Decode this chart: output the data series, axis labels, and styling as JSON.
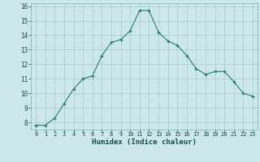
{
  "x": [
    0,
    1,
    2,
    3,
    4,
    5,
    6,
    7,
    8,
    9,
    10,
    11,
    12,
    13,
    14,
    15,
    16,
    17,
    18,
    19,
    20,
    21,
    22,
    23
  ],
  "y": [
    7.8,
    7.8,
    8.3,
    9.3,
    10.3,
    11.0,
    11.2,
    12.6,
    13.5,
    13.7,
    14.3,
    15.7,
    15.7,
    14.2,
    13.6,
    13.3,
    12.6,
    11.7,
    11.3,
    11.5,
    11.5,
    10.8,
    10.0,
    9.8
  ],
  "xlabel": "Humidex (Indice chaleur)",
  "ylim": [
    7.5,
    16.2
  ],
  "xlim": [
    -0.5,
    23.5
  ],
  "yticks": [
    8,
    9,
    10,
    11,
    12,
    13,
    14,
    15,
    16
  ],
  "xticks": [
    0,
    1,
    2,
    3,
    4,
    5,
    6,
    7,
    8,
    9,
    10,
    11,
    12,
    13,
    14,
    15,
    16,
    17,
    18,
    19,
    20,
    21,
    22,
    23
  ],
  "line_color": "#2d7a6c",
  "marker": "+",
  "bg_color": "#cde8eb",
  "grid_color": "#aacfd4",
  "text_color": "#1a4a4a"
}
